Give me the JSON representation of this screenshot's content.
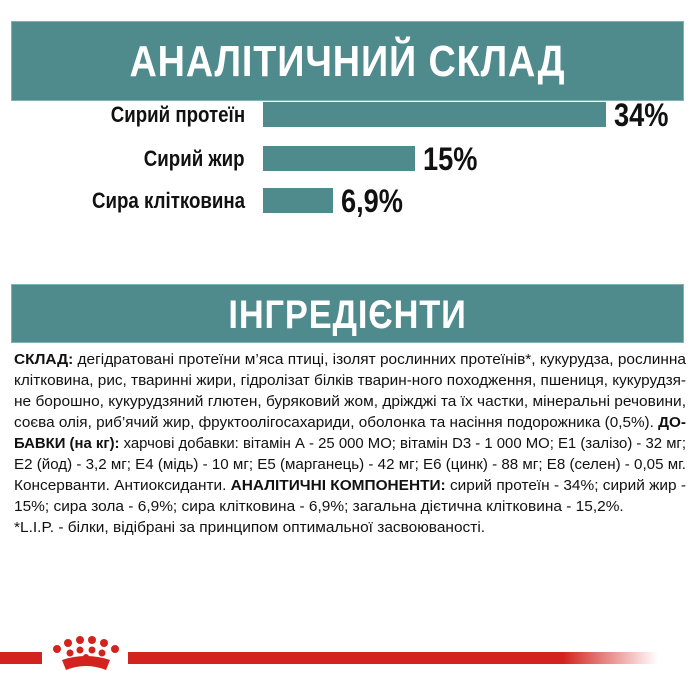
{
  "section1": {
    "title": "АНАЛІТИЧНИЙ СКЛАД"
  },
  "chart_data": {
    "type": "bar",
    "orientation": "horizontal",
    "categories": [
      "Сирий протеїн",
      "Сирий жир",
      "Сира клітковина"
    ],
    "values": [
      34,
      15,
      6.9
    ],
    "value_labels": [
      "34%",
      "15%",
      "6,9%"
    ],
    "unit": "%",
    "bar_color": "#4f8a8c"
  },
  "section2": {
    "title": "ІНГРЕДІЄНТИ",
    "lines": [
      [
        {
          "b": true,
          "t": "СКЛАД:"
        },
        {
          "b": false,
          "t": " дегідратовані протеїни м’яса птиці, ізолят рослинних протеїнів*, кукурудза, рослинна"
        }
      ],
      [
        {
          "b": false,
          "t": "клітковина, рис, тваринні жири, гідролізат білків тварин-ного походження, пшениця, кукурудзя-"
        }
      ],
      [
        {
          "b": false,
          "t": "не борошно, кукурудзяний глютен, буряковий жом, дріжджі та їх частки, мінеральні речовини,"
        }
      ],
      [
        {
          "b": false,
          "t": "соєва олія, риб’ячий жир, фруктоолігосахариди, оболонка та насіння подорожника (0,5%). "
        },
        {
          "b": true,
          "t": "ДО-"
        }
      ],
      [
        {
          "b": true,
          "t": "БАВКИ (на кг):"
        },
        {
          "b": false,
          "t": " харчові добавки: вітамін А - 25 000 МО; вітамін D3 - 1 000 МО; Е1 (залізо) - 32 мг;"
        }
      ],
      [
        {
          "b": false,
          "t": "Е2 (йод) - 3,2 мг; Е4 (мідь) - 10 мг; Е5 (марганець) - 42 мг; Е6 (цинк) - 88 мг; Е8 (селен) - 0,05 мг."
        }
      ],
      [
        {
          "b": false,
          "t": "Консерванти. Антиоксиданти. "
        },
        {
          "b": true,
          "t": "АНАЛІТИЧНІ КОМПОНЕНТИ:"
        },
        {
          "b": false,
          "t": " сирий протеїн - 34%; сирий жир -"
        }
      ],
      [
        {
          "b": false,
          "t": "15%; сира зола - 6,9%; сира клітковина - 6,9%; загальна дієтична клітковина - 15,2%."
        }
      ],
      [
        {
          "b": false,
          "t": "*L.I.P. - білки, відібрані за принципом оптимальної засвоюваності."
        }
      ]
    ]
  },
  "footer": {
    "logo": "Royal Canin crown",
    "brand_color": "#d2231e"
  }
}
